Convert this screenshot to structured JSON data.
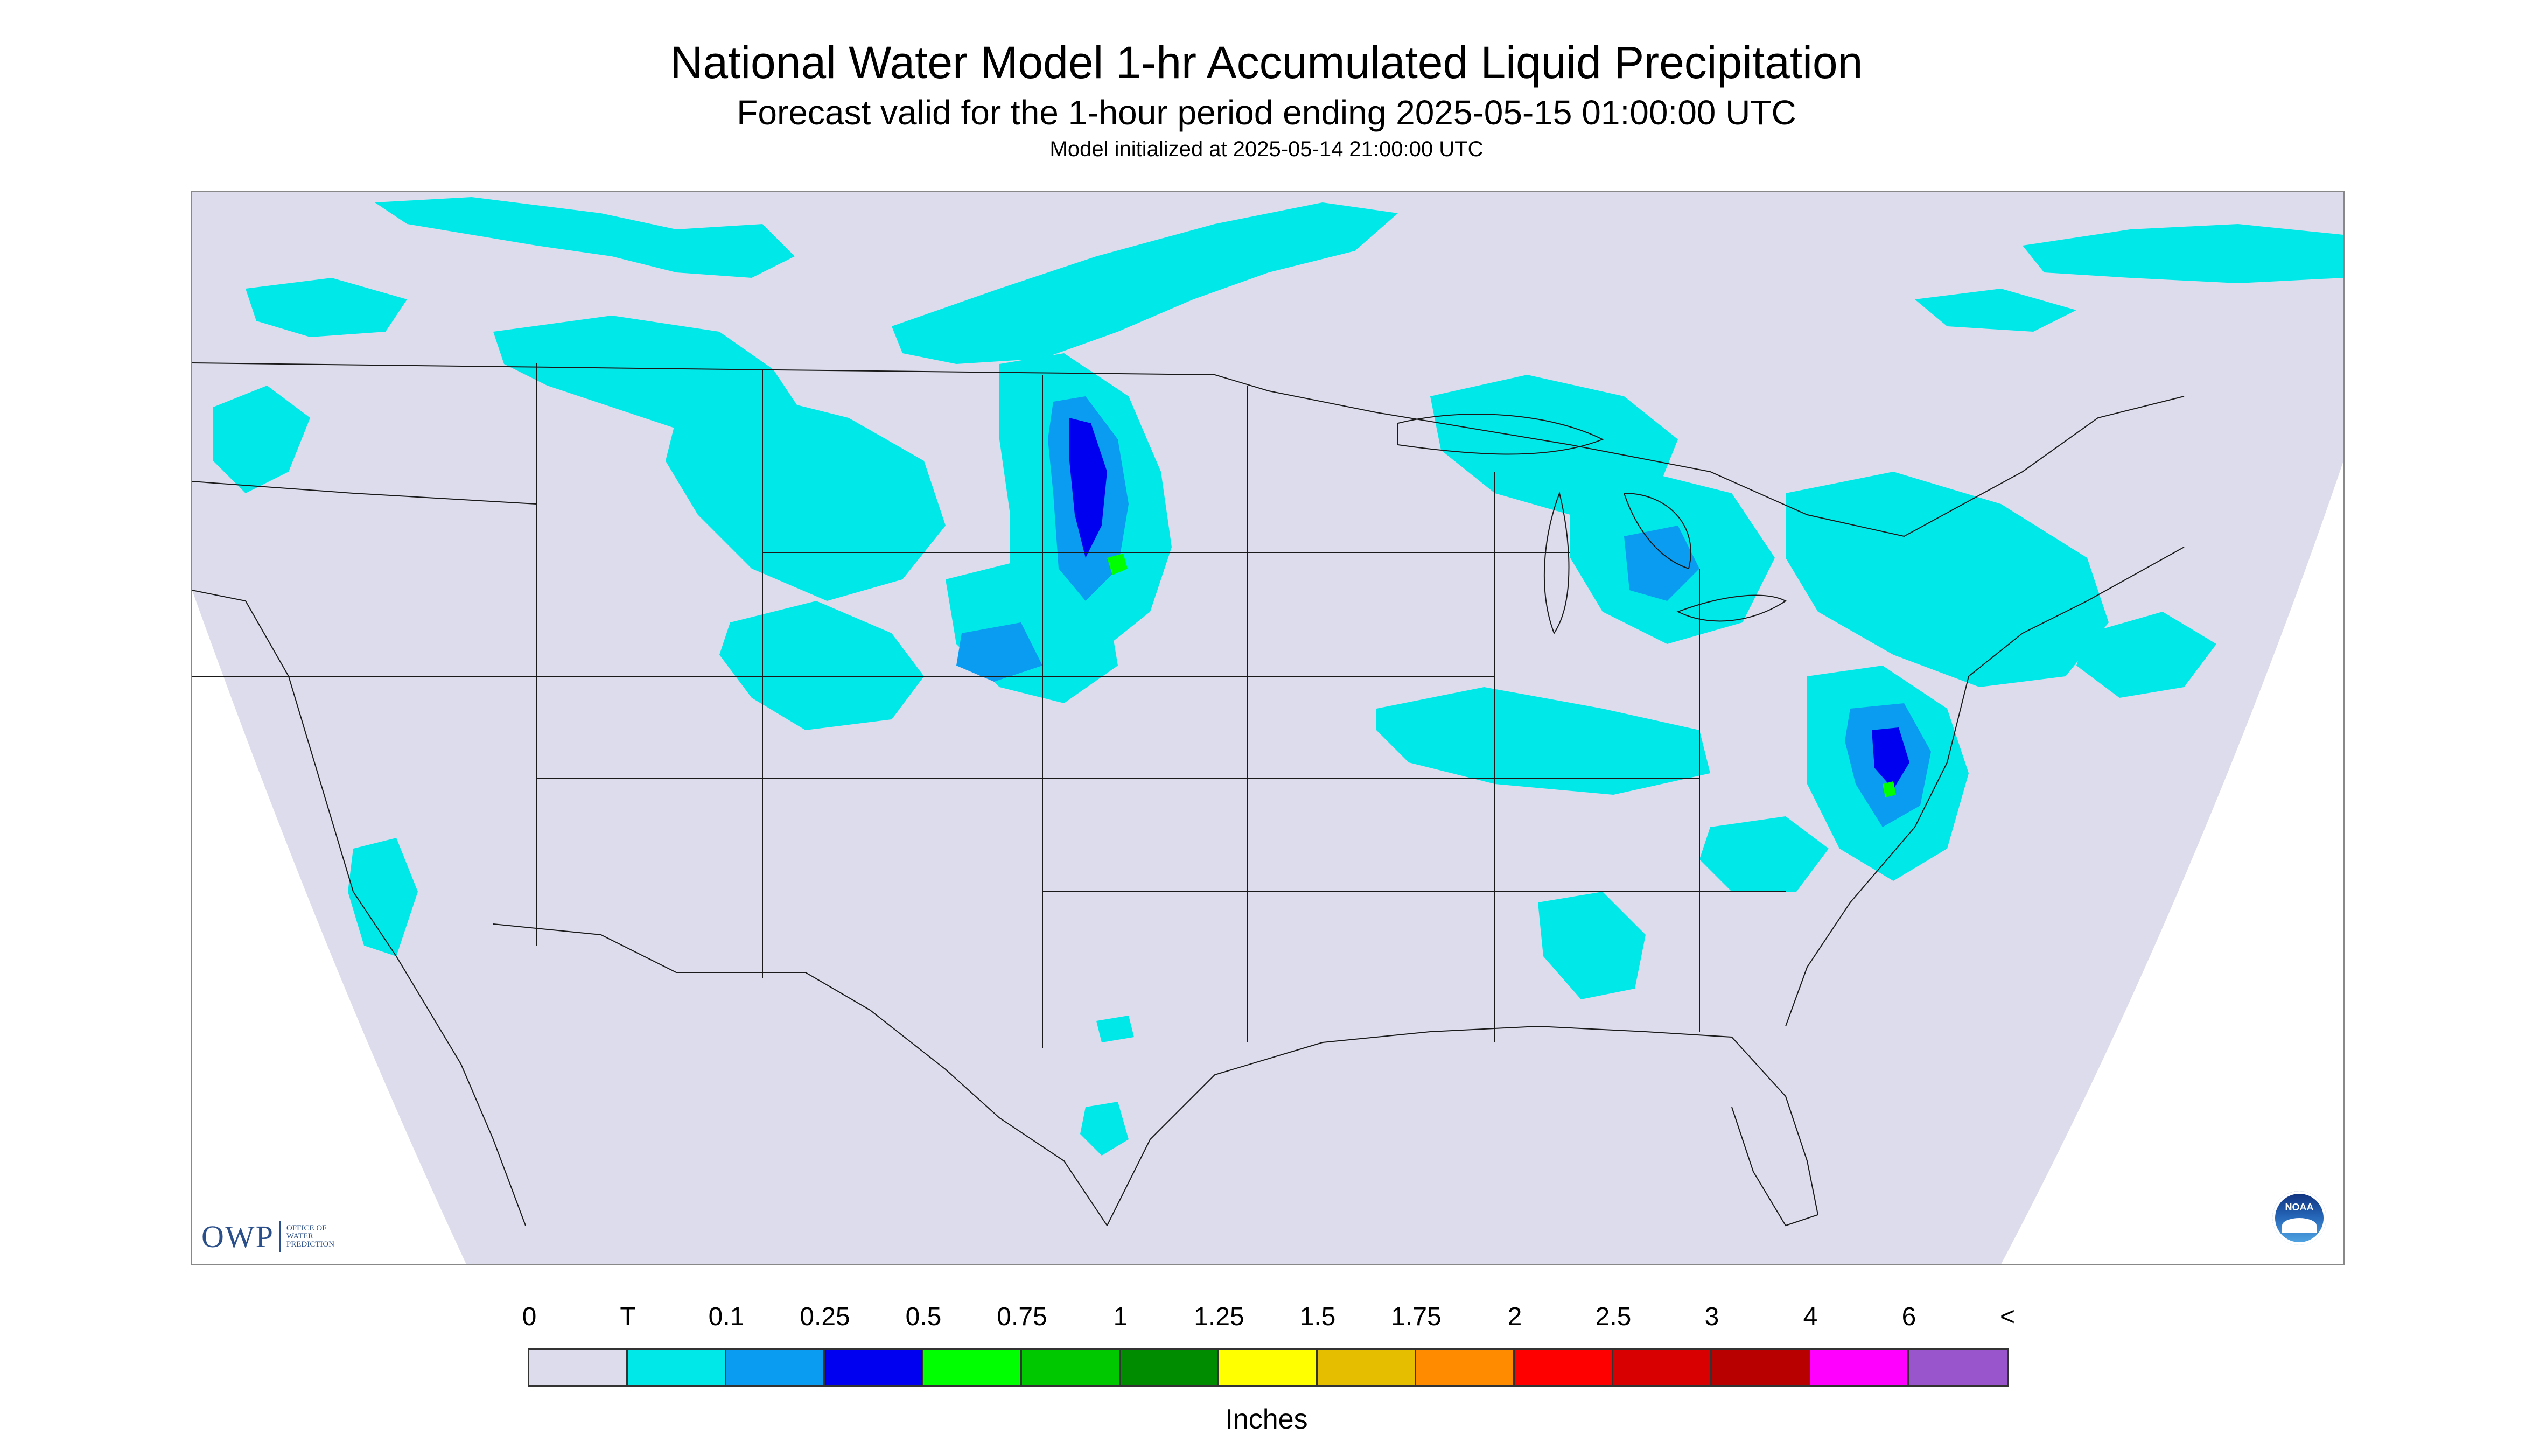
{
  "header": {
    "title": "National Water Model 1-hr Accumulated Liquid Precipitation",
    "subtitle": "Forecast valid for the 1-hour period ending 2025-05-15 01:00:00 UTC",
    "init_line": "Model initialized at 2025-05-14 21:00:00 UTC"
  },
  "map": {
    "background_color": "#dcdcec",
    "outline_color": "#1a1a1a"
  },
  "branding": {
    "owp_mark": "OWP",
    "owp_subtext": "OFFICE OF WATER PREDICTION",
    "noaa_text": "NOAA"
  },
  "legend": {
    "ticks": [
      "0",
      "T",
      "0.1",
      "0.25",
      "0.5",
      "0.75",
      "1",
      "1.25",
      "1.5",
      "1.75",
      "2",
      "2.5",
      "3",
      "4",
      "6",
      "<"
    ],
    "colors": [
      "#dcdcec",
      "#00e8e8",
      "#0a9cf0",
      "#0000f0",
      "#00ff00",
      "#00c800",
      "#008c00",
      "#ffff00",
      "#e6be00",
      "#ff8c00",
      "#ff0000",
      "#d80000",
      "#b80000",
      "#ff00ff",
      "#9955cc"
    ],
    "units": "Inches"
  },
  "precip_regions": [
    {
      "name": "pacific-northwest-band",
      "category": "T"
    },
    {
      "name": "montana-wyoming-band",
      "category": "T"
    },
    {
      "name": "south-dakota-nebraska-band",
      "category": "0.5"
    },
    {
      "name": "great-lakes-band",
      "category": "T"
    },
    {
      "name": "mid-atlantic-cluster",
      "category": "0.5"
    },
    {
      "name": "canadian-prairies-band",
      "category": "0.1"
    },
    {
      "name": "southeast-showers",
      "category": "T"
    }
  ]
}
